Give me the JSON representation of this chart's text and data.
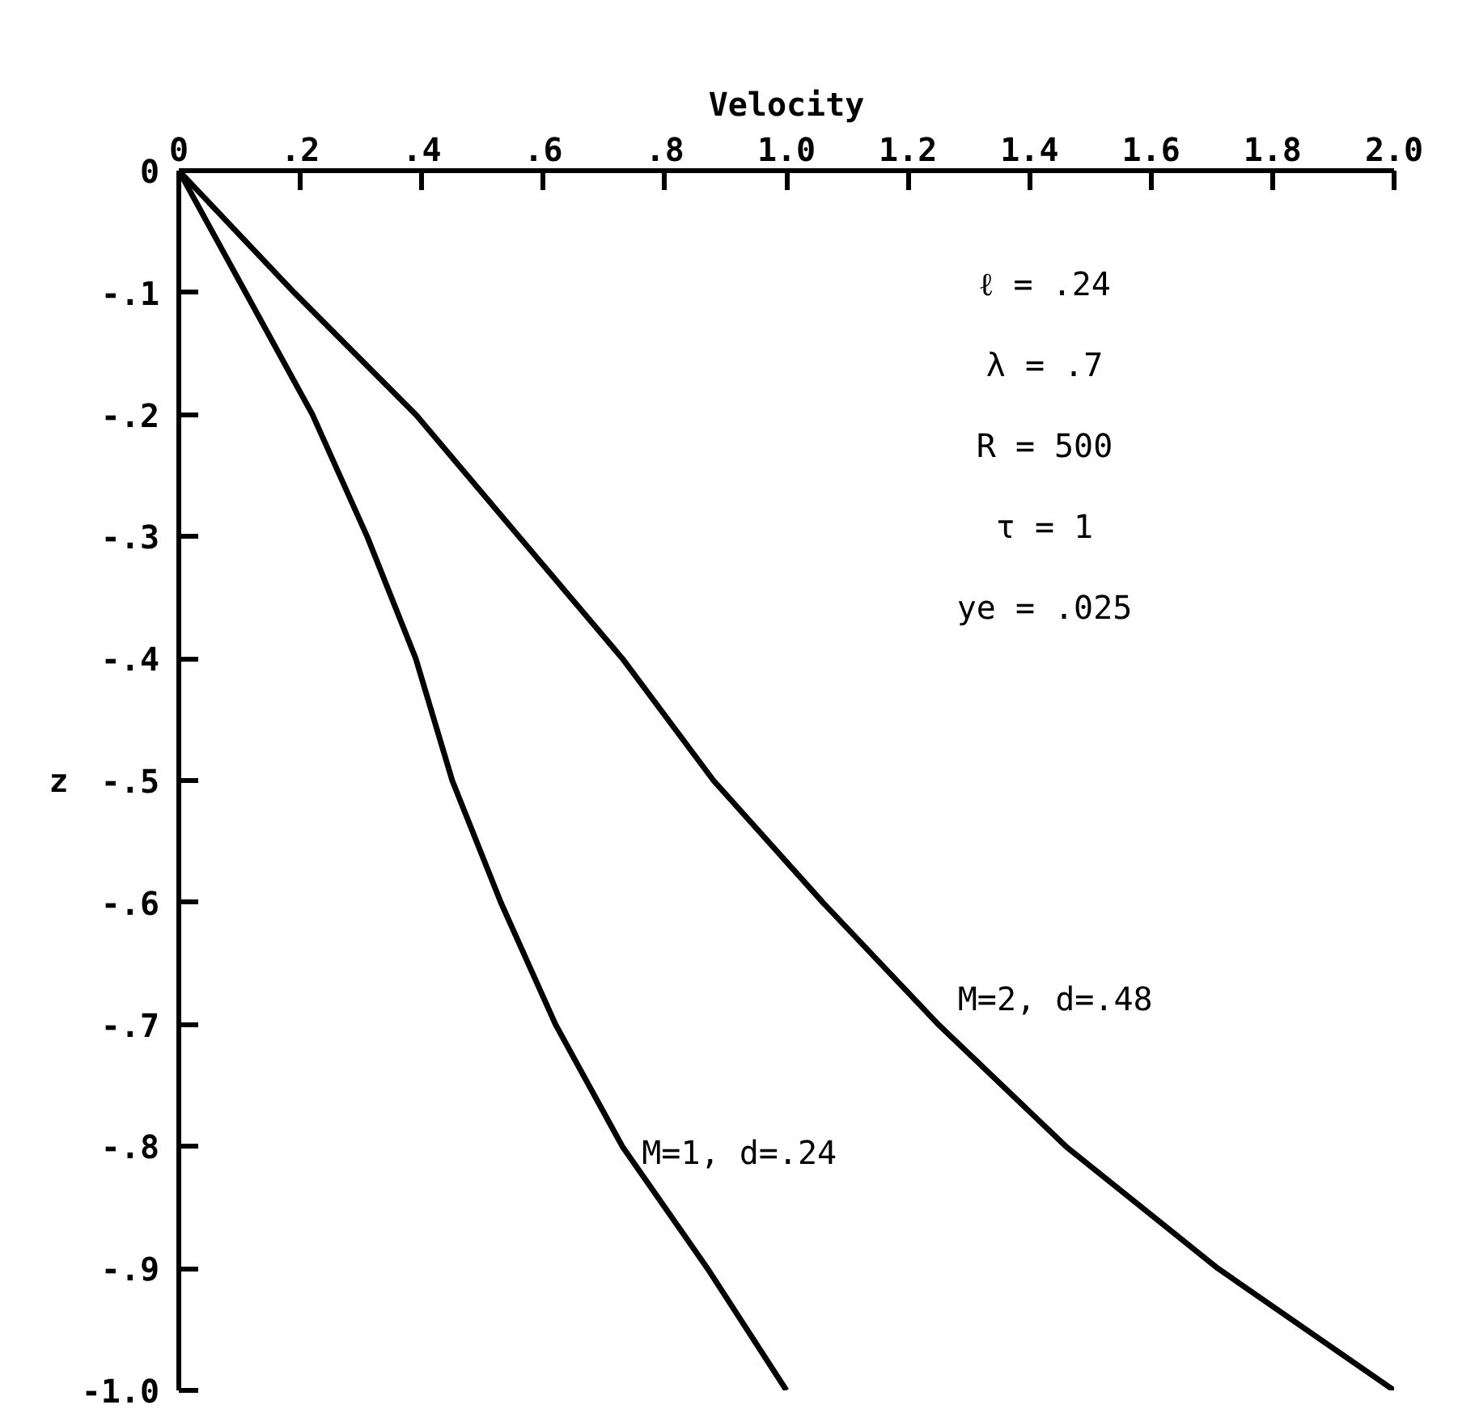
{
  "chart_data": {
    "type": "line",
    "xlabel": "Velocity",
    "ylabel": "z",
    "annotations": [
      "ℓ = .24",
      "λ = .7",
      "R = 500",
      "τ = 1",
      "ye = .025"
    ],
    "xlim": [
      0,
      2.0
    ],
    "xticks": [
      0,
      {
        "value": 0.2,
        "label": ".2"
      },
      {
        "value": 0.4,
        "label": ".4"
      },
      {
        "value": 0.6,
        "label": ".6"
      },
      {
        "value": 0.8,
        "label": ".8"
      },
      {
        "value": 1.0,
        "label": "1.0"
      },
      {
        "value": 1.2,
        "label": "1.2"
      },
      {
        "value": 1.4,
        "label": "1.4"
      },
      {
        "value": 1.6,
        "label": "1.6"
      },
      {
        "value": 1.8,
        "label": "1.8"
      },
      {
        "value": 2.0,
        "label": "2.0"
      }
    ],
    "ylim": [
      -1.0,
      0
    ],
    "yticks": [
      0,
      {
        "value": -0.1,
        "label": "-.1"
      },
      {
        "value": -0.2,
        "label": "-.2"
      },
      {
        "value": -0.3,
        "label": "-.3"
      },
      {
        "value": -0.4,
        "label": "-.4"
      },
      {
        "value": -0.5,
        "label": "-.5"
      },
      {
        "value": -0.6,
        "label": "-.6"
      },
      {
        "value": -0.7,
        "label": "-.7"
      },
      {
        "value": -0.8,
        "label": "-.8"
      },
      {
        "value": -0.9,
        "label": "-.9"
      },
      {
        "value": -1.0,
        "label": "-1.0"
      }
    ],
    "grid": false,
    "marker": "none",
    "line_style": "solid",
    "series": [
      {
        "name": "M=1, d=.24",
        "color": "#000000",
        "x": [
          0,
          0.11,
          0.22,
          0.31,
          0.39,
          0.45,
          0.53,
          0.62,
          0.73,
          0.87,
          1.0
        ],
        "values": [
          0,
          -0.1,
          -0.2,
          -0.3,
          -0.4,
          -0.5,
          -0.6,
          -0.7,
          -0.8,
          -0.9,
          -1.0
        ]
      },
      {
        "name": "M=2, d=.48",
        "color": "#000000",
        "x": [
          0,
          0.19,
          0.39,
          0.56,
          0.73,
          0.88,
          1.06,
          1.25,
          1.46,
          1.71,
          2.0
        ],
        "values": [
          0,
          -0.1,
          -0.2,
          -0.3,
          -0.4,
          -0.5,
          -0.6,
          -0.7,
          -0.8,
          -0.9,
          -1.0
        ]
      }
    ]
  }
}
